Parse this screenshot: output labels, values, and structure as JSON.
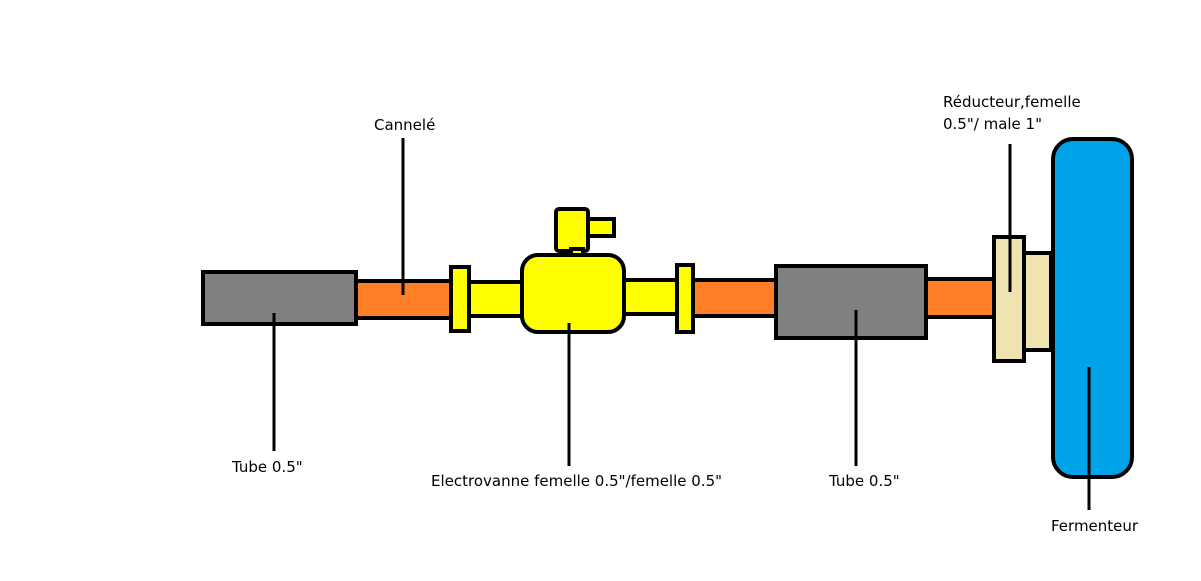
{
  "labels": {
    "tube_left": "Tube 0.5\"",
    "cannele": "Cannelé",
    "electrovanne": "Electrovanne femelle 0.5\"/femelle 0.5\"",
    "tube_right": "Tube 0.5\"",
    "reducteur_line1": "Réducteur,femelle",
    "reducteur_line2": "0.5\"/ male 1\"",
    "fermenteur": "Fermenteur"
  },
  "colors": {
    "tube_gray": "#808080",
    "cannele_orange": "#ff7f27",
    "valve_yellow": "#ffff00",
    "reducer_beige": "#efe4b0",
    "fermenter_blue": "#00a2e8",
    "outline": "#000000"
  }
}
